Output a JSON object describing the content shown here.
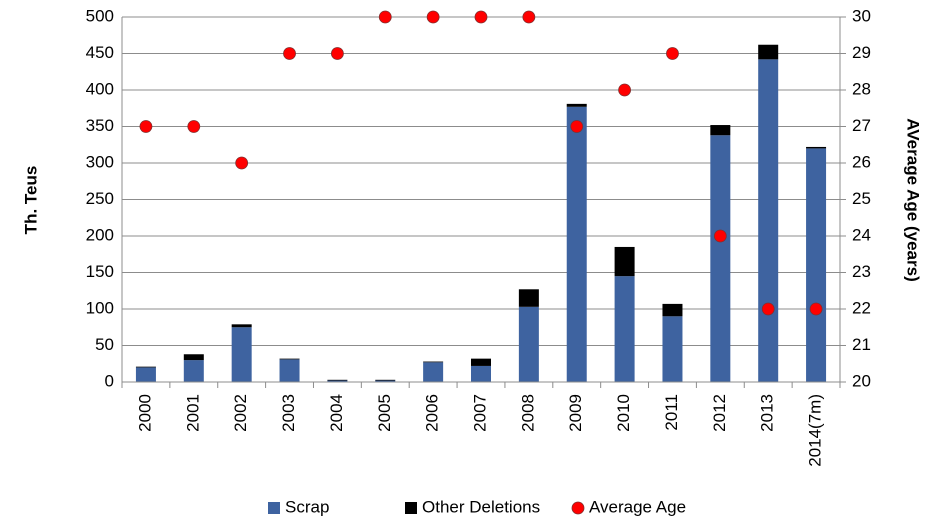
{
  "chart_data": {
    "type": "bar",
    "stacked": true,
    "categories": [
      "2000",
      "2001",
      "2002",
      "2003",
      "2004",
      "2005",
      "2006",
      "2007",
      "2008",
      "2009",
      "2010",
      "2011",
      "2012",
      "2013",
      "2014(7m)"
    ],
    "series": [
      {
        "name": "Scrap",
        "color": "#3e63a0",
        "values": [
          20,
          30,
          75,
          31,
          2,
          2,
          27,
          22,
          103,
          377,
          145,
          90,
          338,
          442,
          320
        ]
      },
      {
        "name": "Other Deletions",
        "color": "#000000",
        "values": [
          1,
          8,
          4,
          1,
          1,
          1,
          1,
          10,
          24,
          4,
          40,
          17,
          14,
          20,
          2
        ]
      },
      {
        "name": "Average Age",
        "color": "#ff0000",
        "axis": "y2",
        "values": [
          27,
          27,
          26,
          29,
          29,
          30,
          30,
          30,
          30,
          27,
          28,
          29,
          24,
          22,
          22
        ]
      }
    ],
    "ylabel": "Th. Teus",
    "y2label": "AVerage Age (years)",
    "ylim": [
      0,
      500
    ],
    "yticks": [
      0,
      50,
      100,
      150,
      200,
      250,
      300,
      350,
      400,
      450,
      500
    ],
    "y2lim": [
      20,
      30
    ],
    "y2ticks": [
      20,
      21,
      22,
      23,
      24,
      25,
      26,
      27,
      28,
      29,
      30
    ],
    "grid": true,
    "legend": "bottom"
  }
}
